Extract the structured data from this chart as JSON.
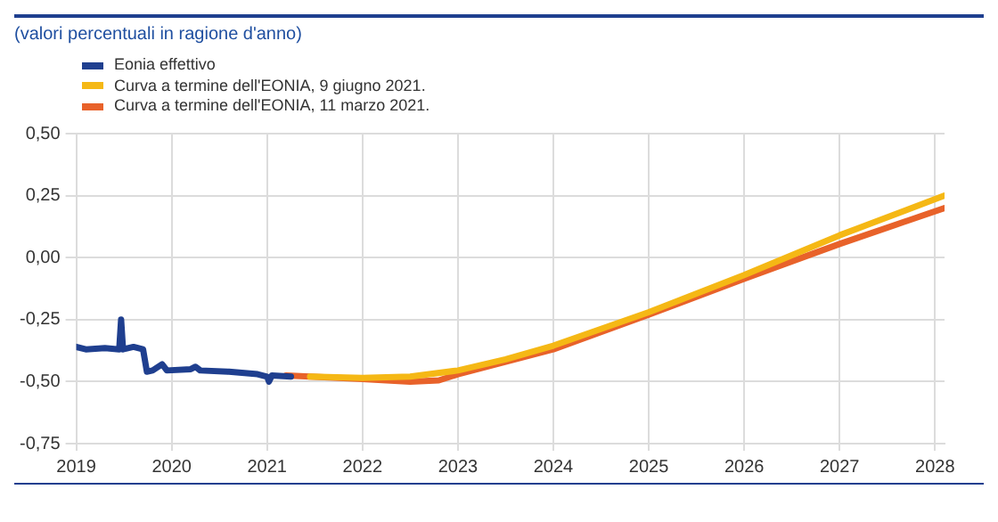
{
  "chart_data": {
    "type": "line",
    "subtitle": "(valori percentuali in ragione d'anno)",
    "legend": "top left",
    "grid": true,
    "marker": "none",
    "line_style": "solid",
    "xlim": [
      2019,
      2028.1
    ],
    "xticks": [
      2019,
      2020,
      2021,
      2022,
      2023,
      2024,
      2025,
      2026,
      2027,
      2028
    ],
    "ylim": [
      -0.75,
      0.5
    ],
    "yticks": [
      {
        "value": -0.75,
        "label": "-0,75"
      },
      {
        "value": -0.5,
        "label": "-0,50"
      },
      {
        "value": -0.25,
        "label": "-0,25"
      },
      {
        "value": 0,
        "label": "0,00"
      },
      {
        "value": 0.25,
        "label": "0,25"
      },
      {
        "value": 0.5,
        "label": "0,50"
      }
    ],
    "series": [
      {
        "name": "Eonia effettivo",
        "color": "#1f3f8f",
        "x": [
          2019.0,
          2019.1,
          2019.3,
          2019.45,
          2019.47,
          2019.49,
          2019.6,
          2019.7,
          2019.74,
          2019.8,
          2019.9,
          2019.95,
          2020.2,
          2020.25,
          2020.3,
          2020.6,
          2020.9,
          2021.0,
          2021.02,
          2021.05,
          2021.25
        ],
        "values": [
          -0.36,
          -0.37,
          -0.365,
          -0.37,
          -0.25,
          -0.37,
          -0.36,
          -0.37,
          -0.46,
          -0.455,
          -0.43,
          -0.455,
          -0.45,
          -0.44,
          -0.455,
          -0.46,
          -0.47,
          -0.48,
          -0.5,
          -0.475,
          -0.48
        ]
      },
      {
        "name": "Curva a termine dell'EONIA, 9 giugno 2021.",
        "color": "#f5b815",
        "x": [
          2021.45,
          2022,
          2022.5,
          2023,
          2023.5,
          2024,
          2025,
          2026,
          2027,
          2028.1
        ],
        "values": [
          -0.48,
          -0.485,
          -0.48,
          -0.455,
          -0.41,
          -0.355,
          -0.22,
          -0.07,
          0.09,
          0.25
        ]
      },
      {
        "name": "Curva a termine dell'EONIA, 11 marzo 2021.",
        "color": "#e8622a",
        "x": [
          2021.2,
          2022,
          2022.5,
          2022.8,
          2023,
          2023.5,
          2024,
          2025,
          2026,
          2027,
          2028.1
        ],
        "values": [
          -0.475,
          -0.49,
          -0.5,
          -0.495,
          -0.47,
          -0.42,
          -0.37,
          -0.23,
          -0.085,
          0.055,
          0.2
        ]
      }
    ]
  }
}
